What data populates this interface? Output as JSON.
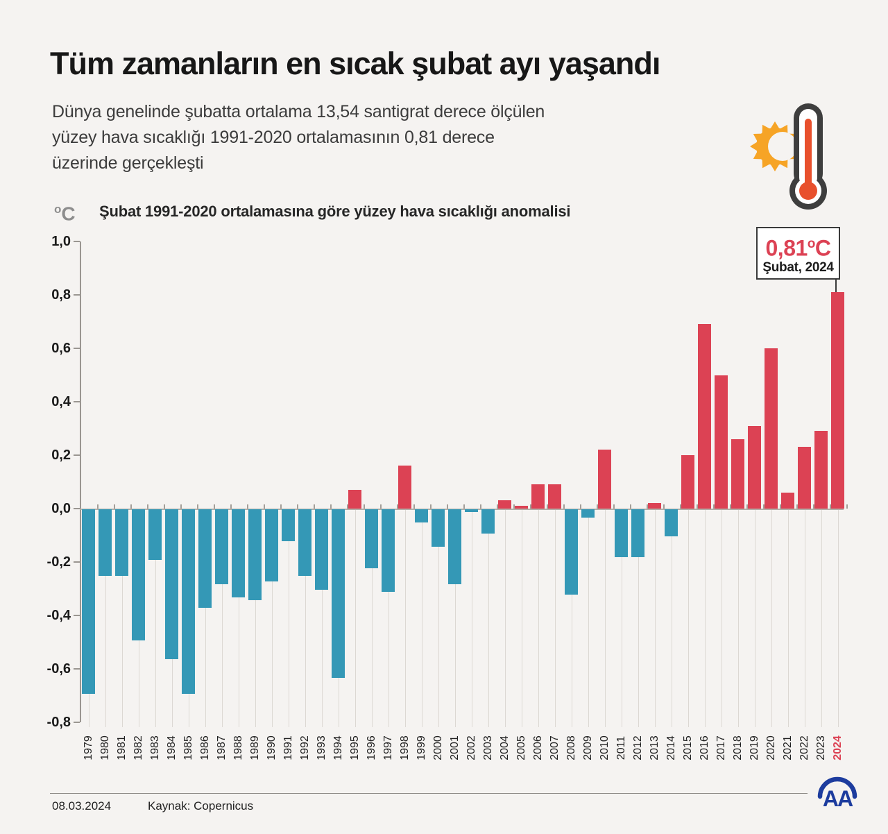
{
  "header": {
    "title": "Tüm zamanların en sıcak şubat ayı yaşandı",
    "subtitle_lines": [
      "Dünya genelinde şubatta ortalama 13,54 santigrat derece ölçülen",
      "yüzey hava sıcaklığı 1991-2020 ortalamasının 0,81 derece",
      "üzerinde gerçekleşti"
    ]
  },
  "icons": {
    "sun_thermometer": "sun-thermometer-icon",
    "sun_color": "#F6A426",
    "thermometer_outline_color": "#3E3E3E",
    "thermometer_mercury_color": "#E8502D"
  },
  "chart": {
    "unit_degree": "o",
    "unit_letter": "C"
  },
  "chart_data": {
    "type": "bar",
    "title": "Şubat 1991-2020 ortalamasına göre yüzey hava sıcaklığı anomalisi",
    "ylabel": "°C",
    "xlabel": "",
    "ylim": [
      -0.8,
      1.0
    ],
    "ytick_labels": [
      "1,0",
      "0,8",
      "0,6",
      "0,4",
      "0,2",
      "0,0",
      "-0,2",
      "-0,4",
      "-0,6",
      "-0,8"
    ],
    "grid": "vertical-only",
    "categories": [
      "1979",
      "1980",
      "1981",
      "1982",
      "1983",
      "1984",
      "1985",
      "1986",
      "1987",
      "1988",
      "1989",
      "1990",
      "1991",
      "1992",
      "1993",
      "1994",
      "1995",
      "1996",
      "1997",
      "1998",
      "1999",
      "2000",
      "2001",
      "2002",
      "2003",
      "2004",
      "2005",
      "2006",
      "2007",
      "2008",
      "2009",
      "2010",
      "2011",
      "2012",
      "2013",
      "2014",
      "2015",
      "2016",
      "2017",
      "2018",
      "2019",
      "2020",
      "2021",
      "2022",
      "2023",
      "2024"
    ],
    "values": [
      -0.69,
      -0.25,
      -0.25,
      -0.49,
      -0.19,
      -0.56,
      -0.69,
      -0.37,
      -0.28,
      -0.33,
      -0.34,
      -0.27,
      -0.12,
      -0.25,
      -0.3,
      -0.63,
      0.07,
      -0.22,
      -0.31,
      0.16,
      -0.05,
      -0.14,
      -0.28,
      -0.01,
      -0.09,
      0.03,
      0.01,
      0.09,
      0.09,
      -0.32,
      -0.03,
      0.22,
      -0.18,
      -0.18,
      0.02,
      -0.1,
      0.2,
      0.69,
      0.5,
      0.26,
      0.31,
      0.6,
      0.06,
      0.23,
      0.29,
      0.81
    ],
    "colors": {
      "positive": "#DC4254",
      "negative": "#3498B6"
    },
    "highlight_year": "2024",
    "annotation": {
      "value": "0,81",
      "degree": "o",
      "unit": "C",
      "label": "Şubat, 2024"
    }
  },
  "footer": {
    "date": "08.03.2024",
    "source": "Kaynak: Copernicus",
    "logo_text": "AA",
    "logo_color": "#1D3C9E"
  }
}
